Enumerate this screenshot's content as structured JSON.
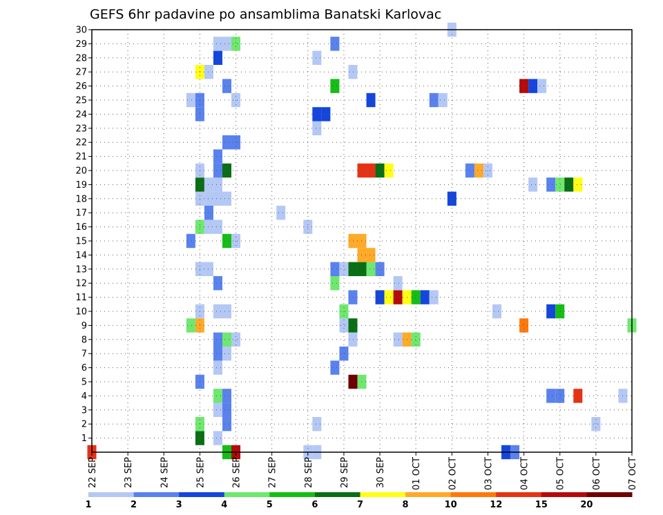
{
  "chart_data": {
    "type": "heatmap",
    "title": "GEFS 6hr padavine po ansamblima Banatski Karlovac",
    "xlabel": "",
    "ylabel": "",
    "x_ticks": [
      "22 SEP",
      "23 SEP",
      "24 SEP",
      "25 SEP",
      "26 SEP",
      "27 SEP",
      "28 SEP",
      "29 SEP",
      "30 SEP",
      "01 OCT",
      "02 OCT",
      "03 OCT",
      "04 OCT",
      "05 OCT",
      "06 OCT",
      "07 OCT"
    ],
    "y_ticks": [
      "1",
      "2",
      "3",
      "4",
      "5",
      "6",
      "7",
      "8",
      "9",
      "10",
      "11",
      "12",
      "13",
      "14",
      "15",
      "16",
      "17",
      "18",
      "19",
      "20",
      "21",
      "22",
      "23",
      "24",
      "25",
      "26",
      "27",
      "28",
      "29",
      "30"
    ],
    "xlim_days": [
      0,
      15
    ],
    "ylim_members": [
      0,
      30
    ],
    "grid": true,
    "legend_placement": "bottom",
    "colorbar": {
      "labels": [
        "1",
        "2",
        "3",
        "4",
        "5",
        "6",
        "7",
        "8",
        "10",
        "12",
        "15",
        "20"
      ],
      "colors": [
        "#b4c8f5",
        "#5a82ed",
        "#1446dc",
        "#6ee86e",
        "#14be14",
        "#0a6e14",
        "#ffff14",
        "#ffaa28",
        "#ff780a",
        "#e63214",
        "#b40a0a",
        "#6e0000"
      ]
    },
    "color_levels": {
      "1": "#b4c8f5",
      "2": "#5a82ed",
      "3": "#1446dc",
      "4": "#6ee86e",
      "5": "#14be14",
      "6": "#0a6e14",
      "7": "#ffff14",
      "8": "#ffaa28",
      "9": "#ff780a",
      "10": "#e63214",
      "11": "#b40a0a",
      "12": "#6e0000"
    },
    "cells": [
      [
        0.0,
        0,
        10
      ],
      [
        3.75,
        0,
        5
      ],
      [
        4.0,
        0,
        11
      ],
      [
        6.0,
        0,
        1
      ],
      [
        6.25,
        0,
        1
      ],
      [
        11.5,
        0,
        3
      ],
      [
        11.75,
        0,
        2
      ],
      [
        3.0,
        1,
        6
      ],
      [
        3.5,
        1,
        1
      ],
      [
        3.0,
        2,
        4
      ],
      [
        3.75,
        2,
        2
      ],
      [
        6.25,
        2,
        1
      ],
      [
        14.0,
        2,
        1
      ],
      [
        3.5,
        3,
        1
      ],
      [
        3.75,
        3,
        2
      ],
      [
        3.5,
        4,
        4
      ],
      [
        3.75,
        4,
        2
      ],
      [
        12.75,
        4,
        2
      ],
      [
        13.0,
        4,
        2
      ],
      [
        13.5,
        4,
        10
      ],
      [
        14.75,
        4,
        1
      ],
      [
        3.0,
        5,
        2
      ],
      [
        7.25,
        5,
        12
      ],
      [
        7.5,
        5,
        4
      ],
      [
        3.5,
        6,
        1
      ],
      [
        6.75,
        6,
        2
      ],
      [
        3.5,
        7,
        2
      ],
      [
        3.75,
        7,
        1
      ],
      [
        7.0,
        7,
        2
      ],
      [
        3.5,
        8,
        2
      ],
      [
        3.75,
        8,
        4
      ],
      [
        4.0,
        8,
        1
      ],
      [
        7.25,
        8,
        1
      ],
      [
        8.5,
        8,
        1
      ],
      [
        8.75,
        8,
        8
      ],
      [
        9.0,
        8,
        4
      ],
      [
        2.75,
        9,
        4
      ],
      [
        3.0,
        9,
        8
      ],
      [
        7.0,
        9,
        1
      ],
      [
        7.25,
        9,
        6
      ],
      [
        12.0,
        9,
        9
      ],
      [
        15.0,
        9,
        4
      ],
      [
        3.0,
        10,
        1
      ],
      [
        3.5,
        10,
        1
      ],
      [
        3.75,
        10,
        1
      ],
      [
        7.0,
        10,
        4
      ],
      [
        11.25,
        10,
        1
      ],
      [
        12.75,
        10,
        3
      ],
      [
        13.0,
        10,
        5
      ],
      [
        7.25,
        11,
        2
      ],
      [
        8.0,
        11,
        3
      ],
      [
        8.25,
        11,
        7
      ],
      [
        8.5,
        11,
        11
      ],
      [
        8.75,
        11,
        7
      ],
      [
        9.0,
        11,
        5
      ],
      [
        9.25,
        11,
        3
      ],
      [
        9.5,
        11,
        1
      ],
      [
        3.5,
        12,
        2
      ],
      [
        6.75,
        12,
        4
      ],
      [
        8.5,
        12,
        1
      ],
      [
        3.0,
        13,
        1
      ],
      [
        3.25,
        13,
        1
      ],
      [
        6.75,
        13,
        2
      ],
      [
        7.0,
        13,
        1
      ],
      [
        7.25,
        13,
        6
      ],
      [
        7.5,
        13,
        6
      ],
      [
        7.75,
        13,
        4
      ],
      [
        8.0,
        13,
        2
      ],
      [
        7.5,
        14,
        8
      ],
      [
        7.75,
        14,
        8
      ],
      [
        2.75,
        15,
        2
      ],
      [
        3.75,
        15,
        5
      ],
      [
        4.0,
        15,
        1
      ],
      [
        7.25,
        15,
        8
      ],
      [
        7.5,
        15,
        8
      ],
      [
        3.0,
        16,
        4
      ],
      [
        3.25,
        16,
        1
      ],
      [
        3.5,
        16,
        1
      ],
      [
        6.0,
        16,
        1
      ],
      [
        3.25,
        17,
        2
      ],
      [
        5.25,
        17,
        1
      ],
      [
        3.0,
        18,
        1
      ],
      [
        3.25,
        18,
        1
      ],
      [
        3.5,
        18,
        1
      ],
      [
        3.75,
        18,
        1
      ],
      [
        10.0,
        18,
        3
      ],
      [
        3.0,
        19,
        6
      ],
      [
        3.25,
        19,
        1
      ],
      [
        3.5,
        19,
        1
      ],
      [
        12.25,
        19,
        1
      ],
      [
        12.75,
        19,
        2
      ],
      [
        13.0,
        19,
        4
      ],
      [
        13.25,
        19,
        6
      ],
      [
        13.5,
        19,
        7
      ],
      [
        3.0,
        20,
        1
      ],
      [
        3.5,
        20,
        2
      ],
      [
        3.75,
        20,
        6
      ],
      [
        7.5,
        20,
        10
      ],
      [
        7.75,
        20,
        10
      ],
      [
        8.0,
        20,
        6
      ],
      [
        8.25,
        20,
        7
      ],
      [
        10.5,
        20,
        2
      ],
      [
        10.75,
        20,
        8
      ],
      [
        11.0,
        20,
        1
      ],
      [
        3.5,
        21,
        2
      ],
      [
        3.75,
        22,
        2
      ],
      [
        4.0,
        22,
        2
      ],
      [
        6.25,
        23,
        1
      ],
      [
        6.25,
        24,
        3
      ],
      [
        6.5,
        24,
        3
      ],
      [
        3.0,
        24,
        2
      ],
      [
        2.75,
        25,
        1
      ],
      [
        3.0,
        25,
        2
      ],
      [
        4.0,
        25,
        1
      ],
      [
        7.75,
        25,
        3
      ],
      [
        9.5,
        25,
        2
      ],
      [
        9.75,
        25,
        1
      ],
      [
        3.75,
        26,
        2
      ],
      [
        6.75,
        26,
        5
      ],
      [
        12.0,
        26,
        11
      ],
      [
        12.25,
        26,
        3
      ],
      [
        12.5,
        26,
        1
      ],
      [
        3.0,
        27,
        7
      ],
      [
        3.25,
        27,
        1
      ],
      [
        7.25,
        27,
        1
      ],
      [
        3.5,
        28,
        3
      ],
      [
        6.25,
        28,
        1
      ],
      [
        3.5,
        29,
        1
      ],
      [
        3.75,
        29,
        1
      ],
      [
        4.0,
        29,
        4
      ],
      [
        6.75,
        29,
        2
      ],
      [
        10.0,
        30,
        1
      ]
    ]
  }
}
